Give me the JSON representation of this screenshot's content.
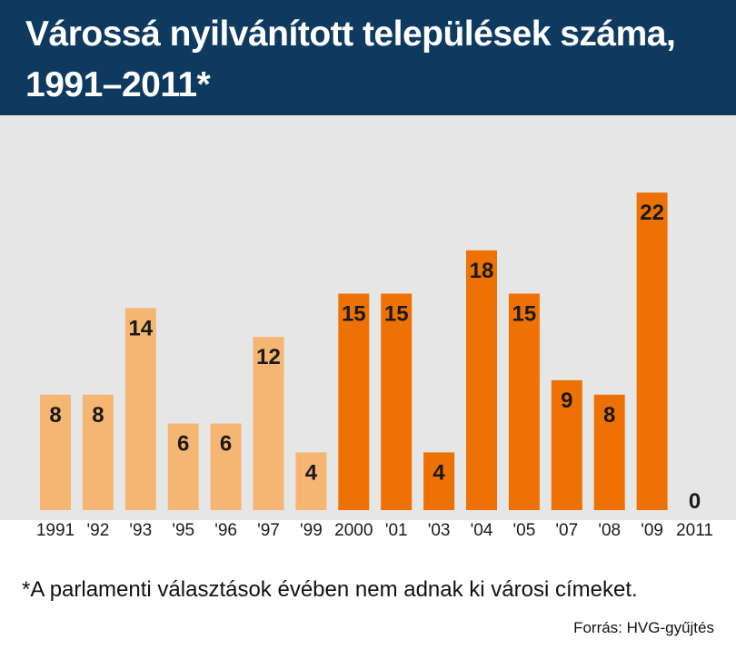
{
  "header": {
    "title": "Várossá nyilvánított települések száma, 1991–2011*"
  },
  "footnote": "*A parlamenti választások évében nem adnak ki városi címeket.",
  "source": "Forrás: HVG-gyűjtés",
  "chart_data": {
    "type": "bar",
    "title": "Várossá nyilvánított települések száma, 1991–2011*",
    "categories": [
      "1991",
      "'92",
      "'93",
      "'95",
      "'96",
      "'97",
      "'99",
      "2000",
      "'01",
      "'03",
      "'04",
      "'05",
      "'07",
      "'08",
      "'09",
      "2011"
    ],
    "values": [
      8,
      8,
      14,
      6,
      6,
      12,
      4,
      15,
      15,
      4,
      18,
      15,
      9,
      8,
      22,
      0
    ],
    "colors": {
      "light_bar": "#f5b673",
      "dark_bar": "#ee7203",
      "header_bg": "#0f3a5f",
      "plot_bg": "#e6e6e6"
    },
    "light_until_index": 6,
    "ylim": [
      0,
      22
    ],
    "grid": false,
    "legend": "none"
  }
}
